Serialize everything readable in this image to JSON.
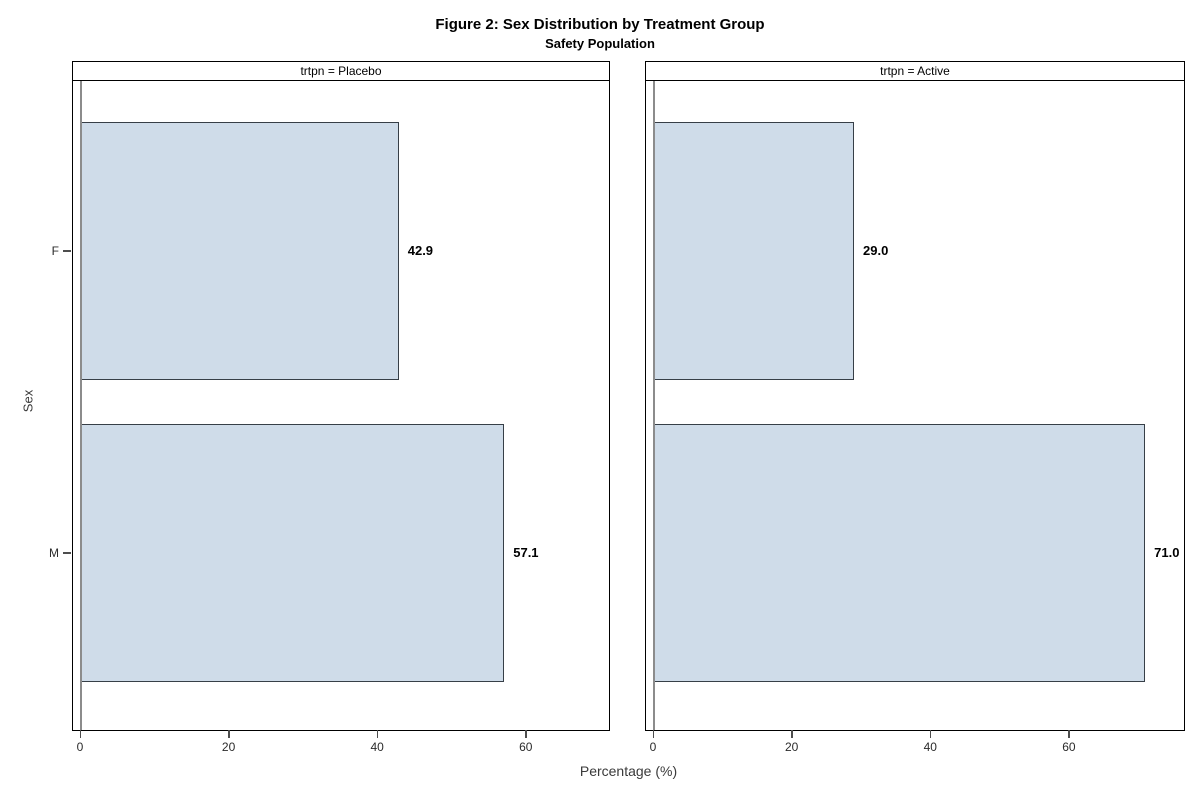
{
  "chart_data": {
    "type": "bar",
    "orientation": "horizontal",
    "title": "Figure 2: Sex Distribution by Treatment Group",
    "subtitle": "Safety Population",
    "xlabel": "Percentage (%)",
    "ylabel": "Sex",
    "categories": [
      "F",
      "M"
    ],
    "x_ticks": [
      0,
      20,
      40,
      60
    ],
    "grid": false,
    "legend": "none",
    "panels": [
      {
        "header": "trtpn = Placebo",
        "key": "placebo",
        "values": [
          42.9,
          57.1
        ],
        "value_labels": [
          "42.9",
          "57.1"
        ],
        "xlim": [
          0,
          71.2
        ]
      },
      {
        "header": "trtpn = Active",
        "key": "active",
        "values": [
          29.0,
          71.0
        ],
        "value_labels": [
          "29.0",
          "71.0"
        ],
        "xlim": [
          0,
          76.6
        ]
      }
    ],
    "colors": {
      "bar_fill": "#cfdce9",
      "bar_border": "#373f47",
      "frame": "#000000",
      "baseline": "#8c8c8c",
      "tick": "#4d4d4d",
      "tick_label": "#2b2b2b",
      "axis_label": "#3a3a3a",
      "value_label": "#000000"
    }
  }
}
